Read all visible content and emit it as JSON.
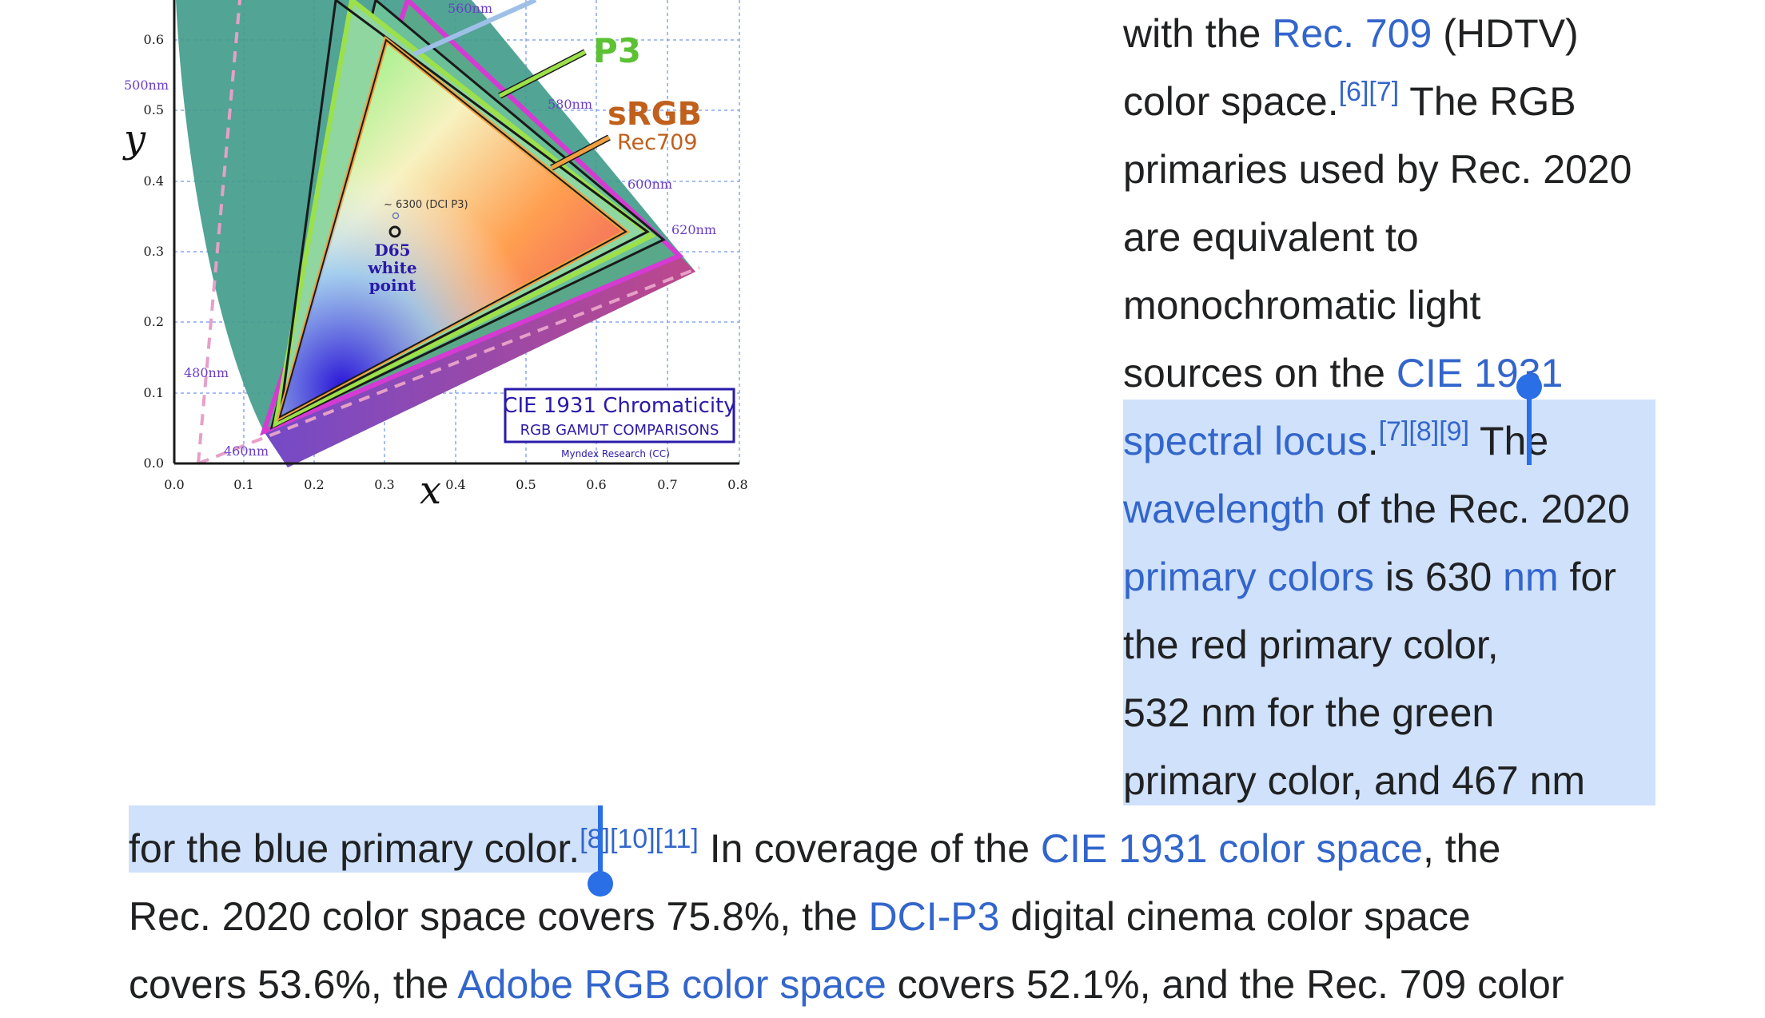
{
  "figure": {
    "title": "CIE 1931 Chromaticity",
    "subtitle": "RGB GAMUT COMPARISONS",
    "credit": "Myndex Research (CC)",
    "p3_label": "P3",
    "srgb_label": "sRGB",
    "rec709_label": "Rec709",
    "dci_point": "~ 6300 (DCI P3)",
    "d65_line1": "D65",
    "d65_line2": "white",
    "d65_line3": "point",
    "x_axis": "x",
    "y_axis": "y",
    "x_ticks": [
      "0.0",
      "0.1",
      "0.2",
      "0.3",
      "0.4",
      "0.5",
      "0.6",
      "0.7",
      "0.8"
    ],
    "y_ticks": [
      "0.0",
      "0.1",
      "0.2",
      "0.3",
      "0.4",
      "0.5",
      "0.6"
    ],
    "wavelengths": [
      "560nm",
      "580nm",
      "600nm",
      "620nm",
      "500nm",
      "480nm",
      "460nm"
    ]
  },
  "article": {
    "l1": {
      "t1": "with the ",
      "link1": "Rec. 709",
      "t2": " (HDTV)"
    },
    "l2": {
      "t1": "color space.",
      "sup": "[6][7]",
      "t2": " The RGB"
    },
    "l3": {
      "t1": "primaries used by Rec. 2020"
    },
    "l4": {
      "t1": "are equivalent to"
    },
    "l5": {
      "t1": "monochromatic light"
    },
    "l6": {
      "t1": "sources on the ",
      "link1": "CIE 1931"
    },
    "l7": {
      "link1": "spectral locus",
      "t1": ".",
      "sup": "[7][8][9]",
      "t2": " The"
    },
    "l8": {
      "link1": "wavelength",
      "t1": " of the Rec. 2020"
    },
    "l9": {
      "link1": "primary colors",
      "t1": " is 630 ",
      "link2": "nm",
      "t2": " for"
    },
    "l10": {
      "t1": "the red primary color,"
    },
    "l11": {
      "t1": "532 nm for the green"
    },
    "l12": {
      "t1": "primary color, and 467 nm"
    },
    "l13": {
      "t1": "for the blue primary color.",
      "sup": "[8][10][11]",
      "t2": " In coverage of the ",
      "link1": "CIE 1931 color space",
      "t3": ", the"
    },
    "l14": {
      "t1": "Rec. 2020 color space covers 75.8%, the ",
      "link1": "DCI-P3",
      "t2": " digital cinema color space"
    },
    "l15": {
      "t1": "covers 53.6%, the ",
      "link1": "Adobe RGB color space",
      "t2": " covers 52.1%, and the Rec. 709 color"
    }
  },
  "colors": {
    "link": "#3366cc",
    "selection": "#cfe1fb",
    "handle": "#2a6fe6"
  }
}
